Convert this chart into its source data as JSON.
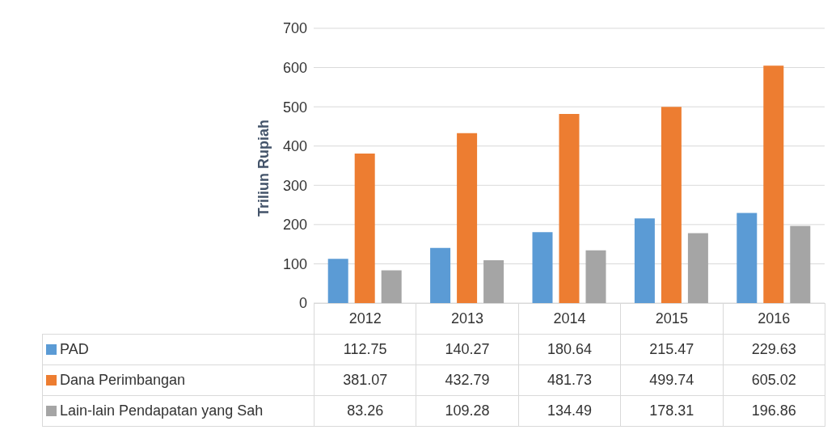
{
  "chart_data": {
    "type": "bar",
    "ylabel": "Triliun Rupiah",
    "categories": [
      "2012",
      "2013",
      "2014",
      "2015",
      "2016"
    ],
    "series": [
      {
        "name": "PAD",
        "color": "#5b9bd5",
        "values": [
          112.75,
          140.27,
          180.64,
          215.47,
          229.63
        ]
      },
      {
        "name": "Dana Perimbangan",
        "color": "#ed7d31",
        "values": [
          381.07,
          432.79,
          481.73,
          499.74,
          605.02
        ]
      },
      {
        "name": "Lain-lain Pendapatan yang Sah",
        "color": "#a5a5a5",
        "values": [
          83.26,
          109.28,
          134.49,
          178.31,
          196.86
        ]
      }
    ],
    "ylim": [
      0,
      700
    ],
    "yticks": [
      0,
      100,
      200,
      300,
      400,
      500,
      600,
      700
    ],
    "grid": "y",
    "legend": "bottom",
    "data_labels": true
  }
}
